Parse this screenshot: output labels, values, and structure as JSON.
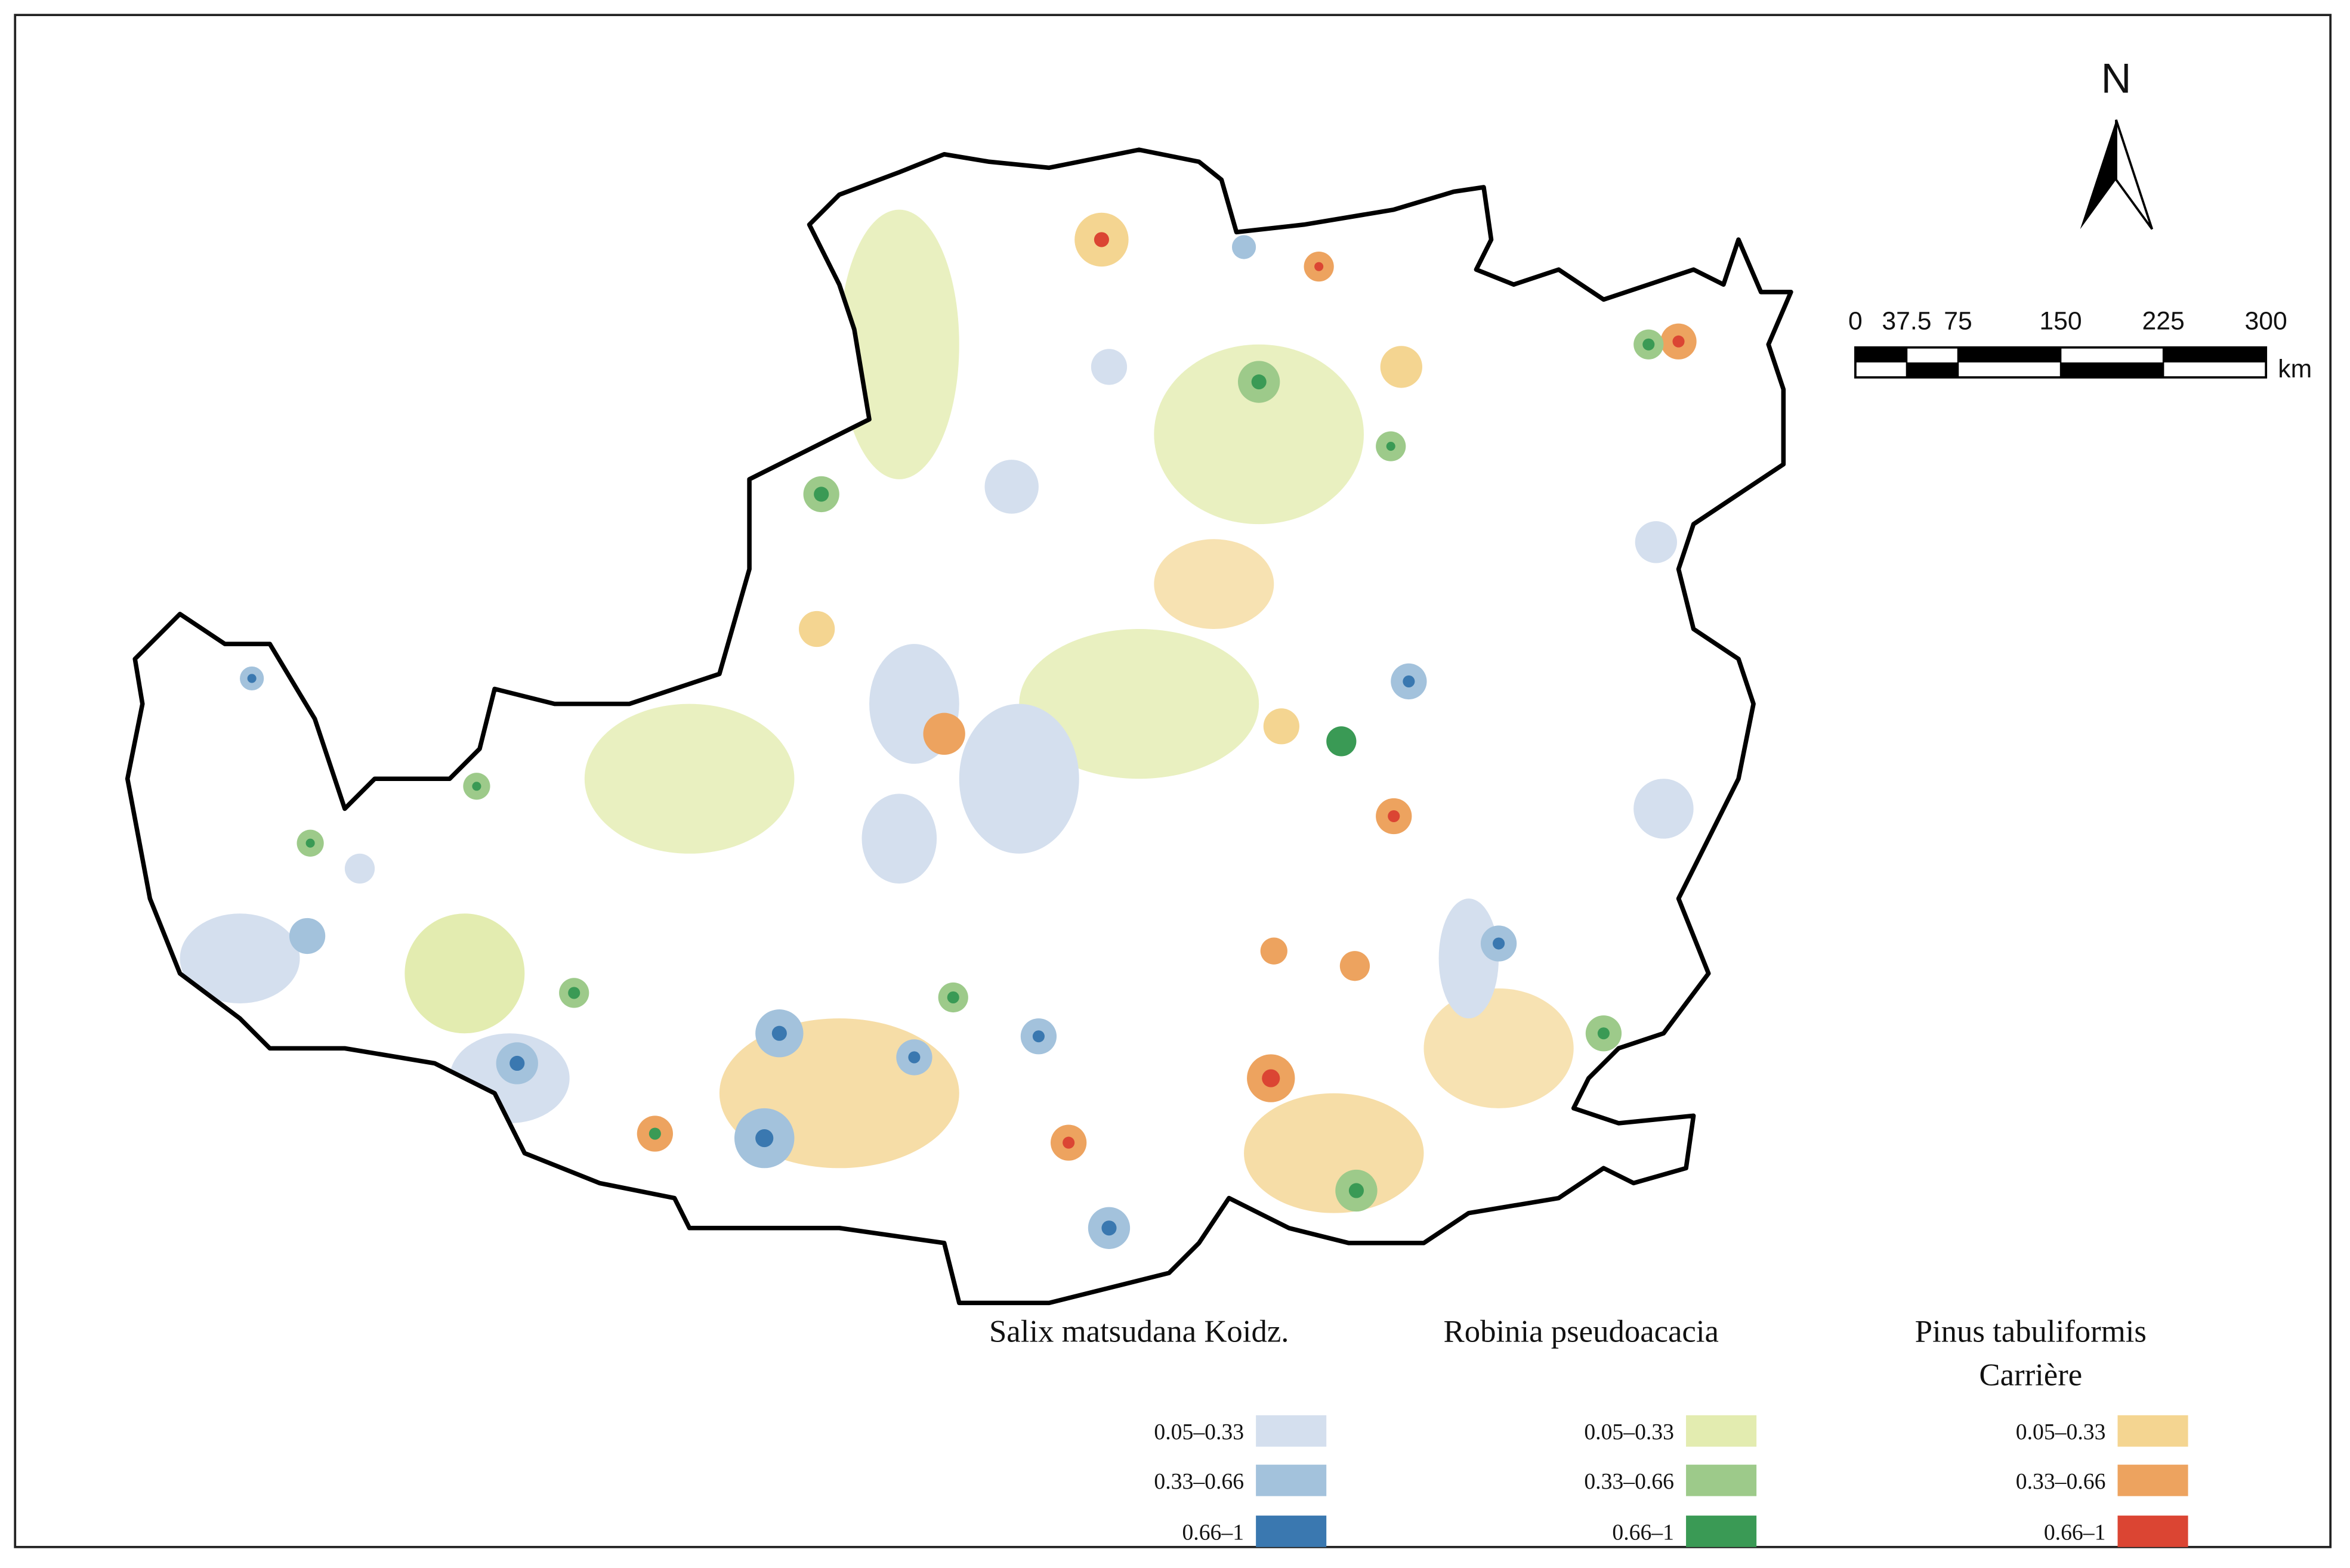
{
  "north_label": "N",
  "scale_bar": {
    "ticks": [
      0,
      37.5,
      75,
      150,
      225,
      300
    ],
    "unit": "km"
  },
  "legend": {
    "groups": [
      {
        "title_lines": [
          "Salix matsudana Koidz."
        ],
        "classes": [
          {
            "label": "0.05–0.33",
            "color": "#d4dfee"
          },
          {
            "label": "0.33–0.66",
            "color": "#a3c2dc"
          },
          {
            "label": "0.66–1",
            "color": "#3a78b0"
          }
        ]
      },
      {
        "title_lines": [
          "Robinia pseudoacacia"
        ],
        "classes": [
          {
            "label": "0.05–0.33",
            "color": "#e3ecb0"
          },
          {
            "label": "0.33–0.66",
            "color": "#9dca8a"
          },
          {
            "label": "0.66–1",
            "color": "#3a9a55"
          }
        ]
      },
      {
        "title_lines": [
          "Pinus tabuliformis",
          "Carrière"
        ],
        "classes": [
          {
            "label": "0.05–0.33",
            "color": "#f4d591"
          },
          {
            "label": "0.33–0.66",
            "color": "#eda35f"
          },
          {
            "label": "0.66–1",
            "color": "#db4533"
          }
        ]
      }
    ]
  }
}
